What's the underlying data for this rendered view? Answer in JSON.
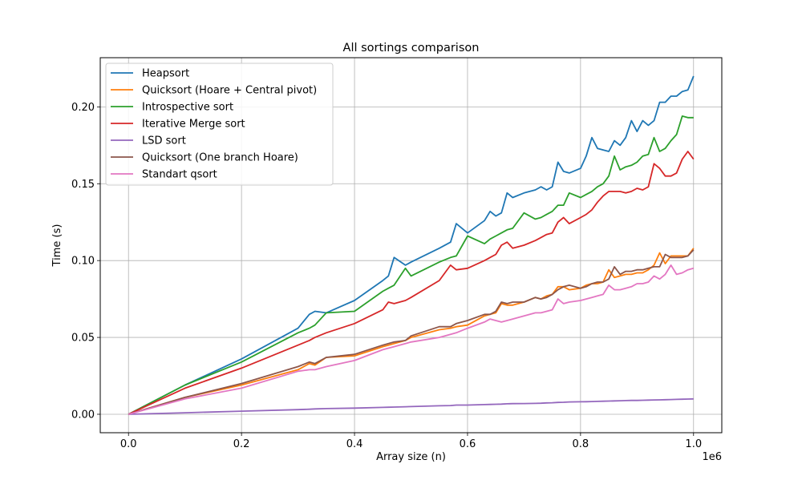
{
  "chart_data": {
    "type": "line",
    "title": "All sortings comparison",
    "xlabel": "Array size (n)",
    "ylabel": "Time (s)",
    "x_offset_label": "1e6",
    "xlim": [
      -0.05,
      1.05
    ],
    "ylim": [
      -0.012,
      0.232
    ],
    "xticks": [
      0.0,
      0.2,
      0.4,
      0.6,
      0.8,
      1.0
    ],
    "xtick_labels": [
      "0.0",
      "0.2",
      "0.4",
      "0.6",
      "0.8",
      "1.0"
    ],
    "yticks": [
      0.0,
      0.05,
      0.1,
      0.15,
      0.2
    ],
    "ytick_labels": [
      "0.00",
      "0.05",
      "0.10",
      "0.15",
      "0.20"
    ],
    "grid": true,
    "legend_position": "top-left",
    "x": [
      0.0,
      0.1,
      0.2,
      0.3,
      0.32,
      0.33,
      0.35,
      0.4,
      0.45,
      0.46,
      0.47,
      0.49,
      0.5,
      0.55,
      0.57,
      0.58,
      0.6,
      0.63,
      0.64,
      0.65,
      0.66,
      0.67,
      0.68,
      0.7,
      0.72,
      0.73,
      0.74,
      0.75,
      0.76,
      0.77,
      0.78,
      0.8,
      0.81,
      0.82,
      0.83,
      0.84,
      0.85,
      0.86,
      0.87,
      0.88,
      0.89,
      0.9,
      0.91,
      0.92,
      0.93,
      0.94,
      0.95,
      0.96,
      0.97,
      0.98,
      0.99,
      1.0
    ],
    "series": [
      {
        "name": "Heapsort",
        "color": "#1f77b4",
        "values": [
          0.0,
          0.019,
          0.036,
          0.056,
          0.065,
          0.067,
          0.066,
          0.074,
          0.087,
          0.09,
          0.102,
          0.097,
          0.099,
          0.108,
          0.112,
          0.124,
          0.118,
          0.126,
          0.132,
          0.129,
          0.131,
          0.144,
          0.141,
          0.144,
          0.146,
          0.148,
          0.146,
          0.148,
          0.164,
          0.158,
          0.157,
          0.16,
          0.168,
          0.18,
          0.173,
          0.172,
          0.171,
          0.178,
          0.175,
          0.18,
          0.191,
          0.184,
          0.191,
          0.188,
          0.191,
          0.203,
          0.203,
          0.207,
          0.207,
          0.21,
          0.211,
          0.22
        ]
      },
      {
        "name": "Quicksort (Hoare + Central pivot)",
        "color": "#ff7f0e",
        "values": [
          0.0,
          0.011,
          0.019,
          0.029,
          0.033,
          0.032,
          0.037,
          0.038,
          0.044,
          0.045,
          0.046,
          0.048,
          0.05,
          0.055,
          0.056,
          0.057,
          0.058,
          0.064,
          0.065,
          0.066,
          0.072,
          0.071,
          0.071,
          0.073,
          0.076,
          0.075,
          0.077,
          0.078,
          0.083,
          0.083,
          0.081,
          0.082,
          0.084,
          0.085,
          0.085,
          0.086,
          0.094,
          0.089,
          0.09,
          0.091,
          0.091,
          0.092,
          0.092,
          0.094,
          0.097,
          0.105,
          0.098,
          0.103,
          0.103,
          0.103,
          0.103,
          0.108
        ]
      },
      {
        "name": "Introspective sort",
        "color": "#2ca02c",
        "values": [
          0.0,
          0.019,
          0.034,
          0.053,
          0.056,
          0.058,
          0.066,
          0.067,
          0.08,
          0.082,
          0.084,
          0.095,
          0.09,
          0.099,
          0.102,
          0.103,
          0.116,
          0.111,
          0.114,
          0.116,
          0.118,
          0.12,
          0.121,
          0.131,
          0.127,
          0.128,
          0.13,
          0.132,
          0.136,
          0.136,
          0.144,
          0.141,
          0.143,
          0.145,
          0.148,
          0.15,
          0.155,
          0.168,
          0.159,
          0.161,
          0.162,
          0.164,
          0.168,
          0.169,
          0.18,
          0.171,
          0.173,
          0.178,
          0.182,
          0.194,
          0.193,
          0.193
        ]
      },
      {
        "name": "Iterative Merge sort",
        "color": "#d62728",
        "values": [
          0.0,
          0.017,
          0.03,
          0.045,
          0.048,
          0.05,
          0.053,
          0.059,
          0.068,
          0.073,
          0.072,
          0.074,
          0.076,
          0.087,
          0.097,
          0.094,
          0.095,
          0.1,
          0.102,
          0.104,
          0.11,
          0.112,
          0.108,
          0.11,
          0.113,
          0.115,
          0.117,
          0.118,
          0.125,
          0.128,
          0.124,
          0.128,
          0.13,
          0.133,
          0.138,
          0.142,
          0.145,
          0.145,
          0.145,
          0.144,
          0.145,
          0.147,
          0.146,
          0.148,
          0.163,
          0.16,
          0.155,
          0.155,
          0.157,
          0.166,
          0.171,
          0.166
        ]
      },
      {
        "name": "LSD sort",
        "color": "#9467bd",
        "values": [
          0.0,
          0.001,
          0.002,
          0.003,
          0.0033,
          0.0035,
          0.0037,
          0.004,
          0.0045,
          0.0046,
          0.0047,
          0.0049,
          0.005,
          0.0055,
          0.0057,
          0.006,
          0.006,
          0.0063,
          0.0064,
          0.0065,
          0.0066,
          0.0068,
          0.0069,
          0.007,
          0.0071,
          0.0072,
          0.0074,
          0.0075,
          0.0077,
          0.0078,
          0.008,
          0.0081,
          0.0082,
          0.0083,
          0.0084,
          0.0085,
          0.0086,
          0.0087,
          0.0088,
          0.0089,
          0.009,
          0.009,
          0.0091,
          0.0092,
          0.0093,
          0.0094,
          0.0095,
          0.0096,
          0.0097,
          0.0098,
          0.0099,
          0.01
        ]
      },
      {
        "name": "Quicksort (One branch Hoare)",
        "color": "#8c564b",
        "values": [
          0.0,
          0.011,
          0.02,
          0.031,
          0.034,
          0.033,
          0.037,
          0.039,
          0.045,
          0.046,
          0.047,
          0.048,
          0.051,
          0.057,
          0.057,
          0.059,
          0.061,
          0.065,
          0.065,
          0.067,
          0.073,
          0.072,
          0.073,
          0.073,
          0.076,
          0.075,
          0.076,
          0.078,
          0.081,
          0.083,
          0.084,
          0.082,
          0.083,
          0.085,
          0.086,
          0.086,
          0.088,
          0.096,
          0.091,
          0.093,
          0.093,
          0.094,
          0.094,
          0.095,
          0.096,
          0.096,
          0.104,
          0.102,
          0.102,
          0.102,
          0.103,
          0.107
        ]
      },
      {
        "name": "Standart qsort",
        "color": "#e377c2",
        "values": [
          0.0,
          0.01,
          0.017,
          0.028,
          0.029,
          0.029,
          0.031,
          0.035,
          0.042,
          0.043,
          0.044,
          0.046,
          0.047,
          0.05,
          0.052,
          0.053,
          0.056,
          0.06,
          0.062,
          0.061,
          0.06,
          0.061,
          0.062,
          0.064,
          0.066,
          0.066,
          0.067,
          0.068,
          0.075,
          0.072,
          0.073,
          0.074,
          0.075,
          0.076,
          0.077,
          0.078,
          0.084,
          0.081,
          0.081,
          0.082,
          0.083,
          0.085,
          0.085,
          0.086,
          0.09,
          0.088,
          0.091,
          0.097,
          0.091,
          0.092,
          0.094,
          0.095
        ]
      }
    ]
  }
}
